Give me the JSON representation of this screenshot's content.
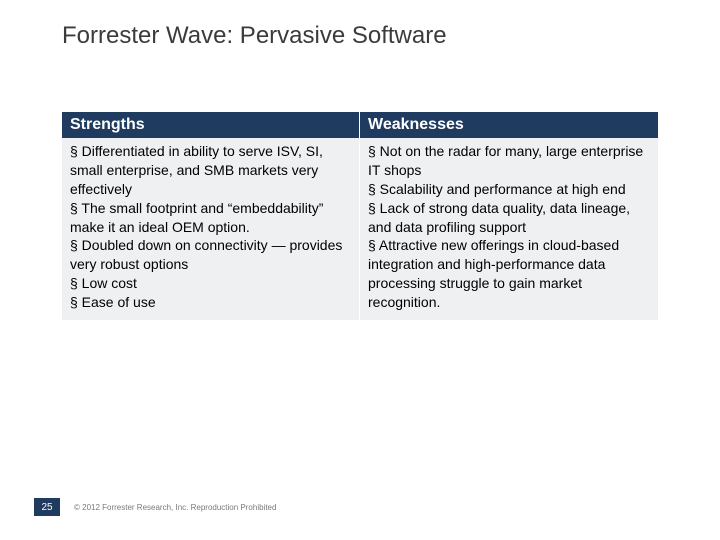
{
  "title": "Forrester Wave: Pervasive Software",
  "colors": {
    "header_bg": "#1f3b60",
    "header_text": "#ffffff",
    "body_bg": "#eef0f2",
    "body_text": "#000000",
    "title_text": "#3b3b3b",
    "page_bg": "#ffffff",
    "copyright_text": "#7a7a7a"
  },
  "table": {
    "headers": {
      "a": "Strengths",
      "b": "Weaknesses"
    },
    "cells": {
      "a": "§ Differentiated in ability to serve ISV, SI, small enterprise, and SMB markets very effectively\n§ The small footprint and “embeddability” make it an ideal OEM option.\n§ Doubled down on connectivity — provides very robust options\n§ Low cost\n§ Ease of use",
      "b": "§ Not on the radar for many, large enterprise IT shops\n§ Scalability and performance at high end\n§ Lack of strong data quality, data lineage, and data profiling support\n§ Attractive new offerings in cloud-based integration and high-performance data processing struggle to gain market recognition."
    }
  },
  "footer": {
    "page": "25",
    "copyright": "© 2012 Forrester Research, Inc. Reproduction Prohibited"
  }
}
